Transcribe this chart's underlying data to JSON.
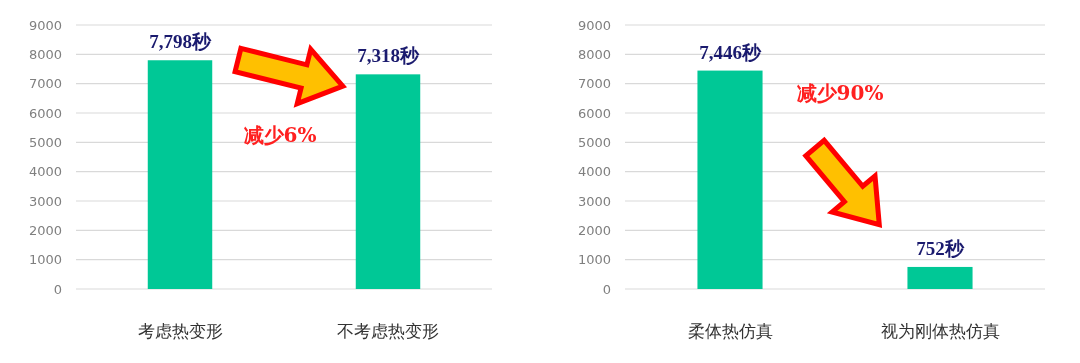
{
  "chart_data": [
    {
      "type": "bar",
      "categories": [
        "考虑热变形",
        "不考虑热变形"
      ],
      "values": [
        7798,
        7318
      ],
      "value_labels": [
        "7,798秒",
        "7,318秒"
      ],
      "color": "#00c896",
      "ylim": [
        0,
        9000
      ],
      "yticks": [
        0,
        1000,
        2000,
        3000,
        4000,
        5000,
        6000,
        7000,
        8000,
        9000
      ],
      "grid": "y",
      "annotations": [
        "减少6%"
      ]
    },
    {
      "type": "bar",
      "categories": [
        "柔体热仿真",
        "视为刚体热仿真"
      ],
      "values": [
        7446,
        752
      ],
      "value_labels": [
        "7,446秒",
        "752秒"
      ],
      "color": "#00c896",
      "ylim": [
        0,
        9000
      ],
      "yticks": [
        0,
        1000,
        2000,
        3000,
        4000,
        5000,
        6000,
        7000,
        8000,
        9000
      ],
      "grid": "y",
      "annotations": [
        "减少90%"
      ]
    }
  ]
}
